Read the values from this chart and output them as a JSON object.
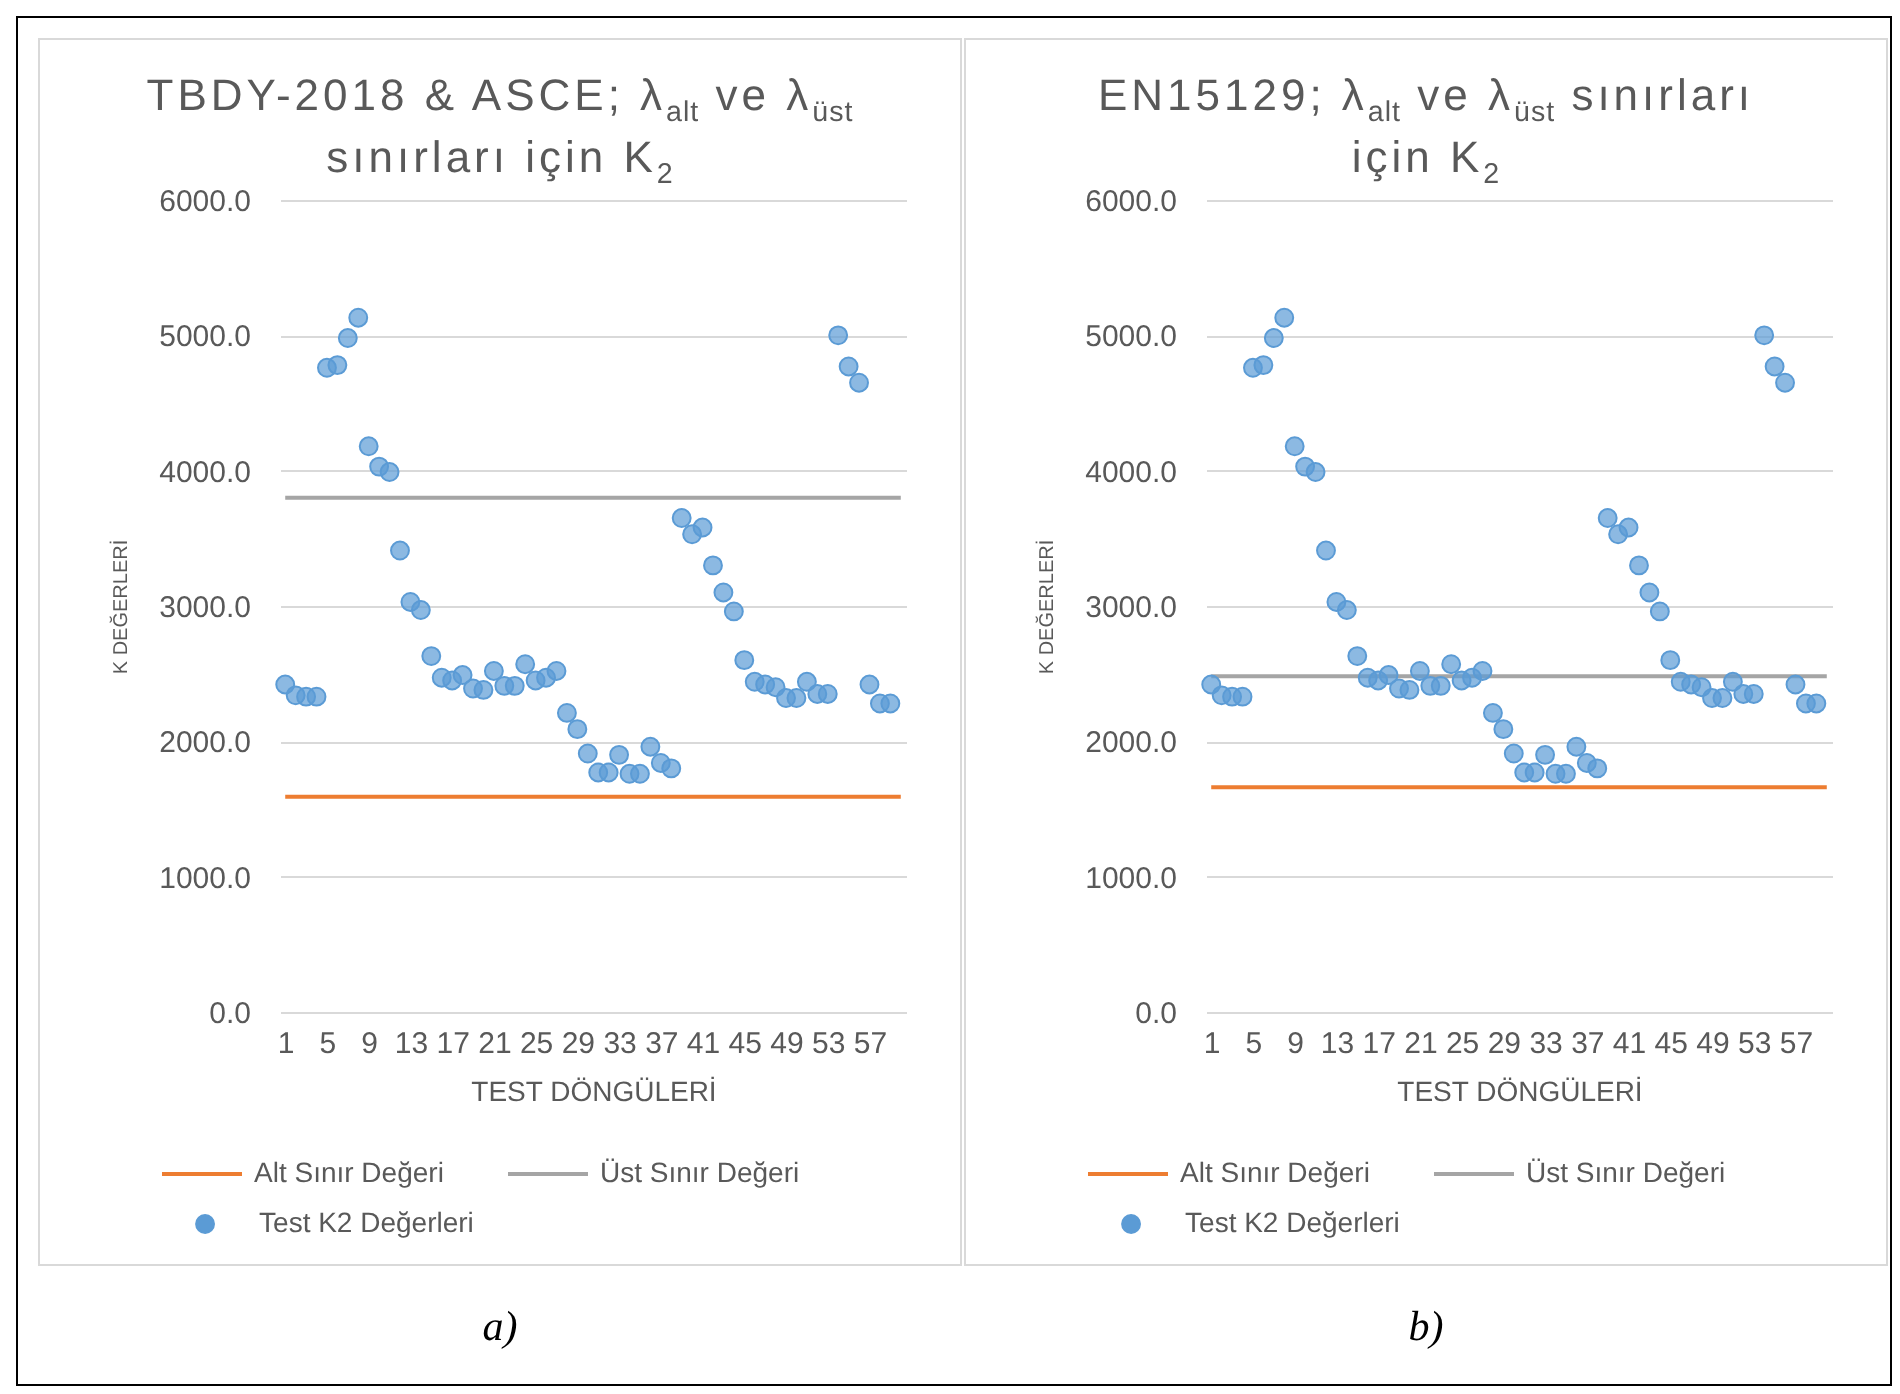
{
  "chart_data": [
    {
      "type": "scatter",
      "title": "TBDY-2018 & ASCE; λ$_{alt}$ ve λ$_{üst}$ sınırları için K$_{2}$",
      "xlabel": "TEST DÖNGÜLERİ",
      "ylabel": "K DEĞERLERİ",
      "categories": [
        "1",
        null,
        null,
        null,
        "5",
        null,
        null,
        null,
        "9",
        null,
        null,
        null,
        "13",
        null,
        null,
        null,
        "17",
        null,
        null,
        null,
        "21",
        null,
        null,
        null,
        "25",
        null,
        null,
        null,
        "29",
        null,
        null,
        null,
        "33",
        null,
        null,
        null,
        "37",
        null,
        null,
        null,
        "41",
        null,
        null,
        null,
        "45",
        null,
        null,
        null,
        "49",
        null,
        null,
        null,
        "53",
        null,
        null,
        null,
        "57",
        null,
        null,
        null
      ],
      "series": [
        {
          "name": "Alt Sınır Değeri",
          "type": "line",
          "color": "#ed7d31",
          "values": [
            1590,
            1590,
            1590,
            1590,
            1590,
            1590,
            1590,
            1590,
            1590,
            1590,
            1590,
            1590,
            1590,
            1590,
            1590,
            1590,
            1590,
            1590,
            1590,
            1590,
            1590,
            1590,
            1590,
            1590,
            1590,
            1590,
            1590,
            1590,
            1590,
            1590,
            1590,
            1590,
            1590,
            1590,
            1590,
            1590,
            1590,
            1590,
            1590,
            1590,
            1590,
            1590,
            1590,
            1590,
            1590,
            1590,
            1590,
            1590,
            1590,
            1590,
            1590,
            1590,
            1590,
            1590,
            1590,
            1590,
            1590,
            1590,
            1590,
            1590
          ]
        },
        {
          "name": "Üst Sınır Değeri",
          "type": "line",
          "color": "#a5a5a5",
          "values": [
            3800,
            3800,
            3800,
            3800,
            3800,
            3800,
            3800,
            3800,
            3800,
            3800,
            3800,
            3800,
            3800,
            3800,
            3800,
            3800,
            3800,
            3800,
            3800,
            3800,
            3800,
            3800,
            3800,
            3800,
            3800,
            3800,
            3800,
            3800,
            3800,
            3800,
            3800,
            3800,
            3800,
            3800,
            3800,
            3800,
            3800,
            3800,
            3800,
            3800,
            3800,
            3800,
            3800,
            3800,
            3800,
            3800,
            3800,
            3800,
            3800,
            3800,
            3800,
            3800,
            3800,
            3800,
            3800,
            3800,
            3800,
            3800,
            3800,
            3800
          ]
        },
        {
          "name": "Test K2 Değerleri",
          "color": "#5b9bd5",
          "marker": "circle",
          "values": [
            2420,
            2340,
            2330,
            2330,
            4760,
            4780,
            4980,
            5130,
            4180,
            4030,
            3990,
            3410,
            3030,
            2970,
            2630,
            2470,
            2450,
            2490,
            2390,
            2380,
            2520,
            2410,
            2410,
            2570,
            2450,
            2470,
            2520,
            2210,
            2090,
            1910,
            1770,
            1770,
            1900,
            1760,
            1760,
            1960,
            1840,
            1800,
            3650,
            3530,
            3580,
            3300,
            3100,
            2960,
            2600,
            2440,
            2420,
            2400,
            2320,
            2320,
            2440,
            2350,
            2350,
            5000,
            4770,
            4650,
            2420,
            2280,
            2280,
            null
          ]
        }
      ],
      "ylim": [
        0,
        6000
      ],
      "yticks": [
        {
          "value": 0,
          "label": "0.0"
        },
        {
          "value": 1000,
          "label": "1000.0"
        },
        {
          "value": 2000,
          "label": "2000.0"
        },
        {
          "value": 3000,
          "label": "3000.0"
        },
        {
          "value": 4000,
          "label": "4000.0"
        },
        {
          "value": 5000,
          "label": "5000.0"
        },
        {
          "value": 6000,
          "label": "6000.0"
        }
      ],
      "grid": "y",
      "legend": "bottom",
      "annotations": [
        "a)"
      ]
    },
    {
      "type": "scatter",
      "title": "EN15129; λ$_{alt}$ ve λ$_{üst}$ sınırları için K$_{2}$",
      "xlabel": "TEST DÖNGÜLERİ",
      "ylabel": "K DEĞERLERİ",
      "categories": [
        "1",
        null,
        null,
        null,
        "5",
        null,
        null,
        null,
        "9",
        null,
        null,
        null,
        "13",
        null,
        null,
        null,
        "17",
        null,
        null,
        null,
        "21",
        null,
        null,
        null,
        "25",
        null,
        null,
        null,
        "29",
        null,
        null,
        null,
        "33",
        null,
        null,
        null,
        "37",
        null,
        null,
        null,
        "41",
        null,
        null,
        null,
        "45",
        null,
        null,
        null,
        "49",
        null,
        null,
        null,
        "53",
        null,
        null,
        null,
        "57",
        null,
        null,
        null
      ],
      "series": [
        {
          "name": "Alt Sınır Değeri",
          "type": "line",
          "color": "#ed7d31",
          "values": [
            1660,
            1660,
            1660,
            1660,
            1660,
            1660,
            1660,
            1660,
            1660,
            1660,
            1660,
            1660,
            1660,
            1660,
            1660,
            1660,
            1660,
            1660,
            1660,
            1660,
            1660,
            1660,
            1660,
            1660,
            1660,
            1660,
            1660,
            1660,
            1660,
            1660,
            1660,
            1660,
            1660,
            1660,
            1660,
            1660,
            1660,
            1660,
            1660,
            1660,
            1660,
            1660,
            1660,
            1660,
            1660,
            1660,
            1660,
            1660,
            1660,
            1660,
            1660,
            1660,
            1660,
            1660,
            1660,
            1660,
            1660,
            1660,
            1660,
            1660
          ]
        },
        {
          "name": "Üst Sınır Değeri",
          "type": "line",
          "color": "#a5a5a5",
          "values": [
            2480,
            2480,
            2480,
            2480,
            2480,
            2480,
            2480,
            2480,
            2480,
            2480,
            2480,
            2480,
            2480,
            2480,
            2480,
            2480,
            2480,
            2480,
            2480,
            2480,
            2480,
            2480,
            2480,
            2480,
            2480,
            2480,
            2480,
            2480,
            2480,
            2480,
            2480,
            2480,
            2480,
            2480,
            2480,
            2480,
            2480,
            2480,
            2480,
            2480,
            2480,
            2480,
            2480,
            2480,
            2480,
            2480,
            2480,
            2480,
            2480,
            2480,
            2480,
            2480,
            2480,
            2480,
            2480,
            2480,
            2480,
            2480,
            2480,
            2480
          ]
        },
        {
          "name": "Test K2 Değerleri",
          "color": "#5b9bd5",
          "marker": "circle",
          "values": [
            2420,
            2340,
            2330,
            2330,
            4760,
            4780,
            4980,
            5130,
            4180,
            4030,
            3990,
            3410,
            3030,
            2970,
            2630,
            2470,
            2450,
            2490,
            2390,
            2380,
            2520,
            2410,
            2410,
            2570,
            2450,
            2470,
            2520,
            2210,
            2090,
            1910,
            1770,
            1770,
            1900,
            1760,
            1760,
            1960,
            1840,
            1800,
            3650,
            3530,
            3580,
            3300,
            3100,
            2960,
            2600,
            2440,
            2420,
            2400,
            2320,
            2320,
            2440,
            2350,
            2350,
            5000,
            4770,
            4650,
            2420,
            2280,
            2280,
            null
          ]
        }
      ],
      "ylim": [
        0,
        6000
      ],
      "yticks": [
        {
          "value": 0,
          "label": "0.0"
        },
        {
          "value": 1000,
          "label": "1000.0"
        },
        {
          "value": 2000,
          "label": "2000.0"
        },
        {
          "value": 3000,
          "label": "3000.0"
        },
        {
          "value": 4000,
          "label": "4000.0"
        },
        {
          "value": 5000,
          "label": "5000.0"
        },
        {
          "value": 6000,
          "label": "6000.0"
        }
      ],
      "grid": "y",
      "legend": "bottom",
      "annotations": [
        "b)"
      ]
    }
  ]
}
